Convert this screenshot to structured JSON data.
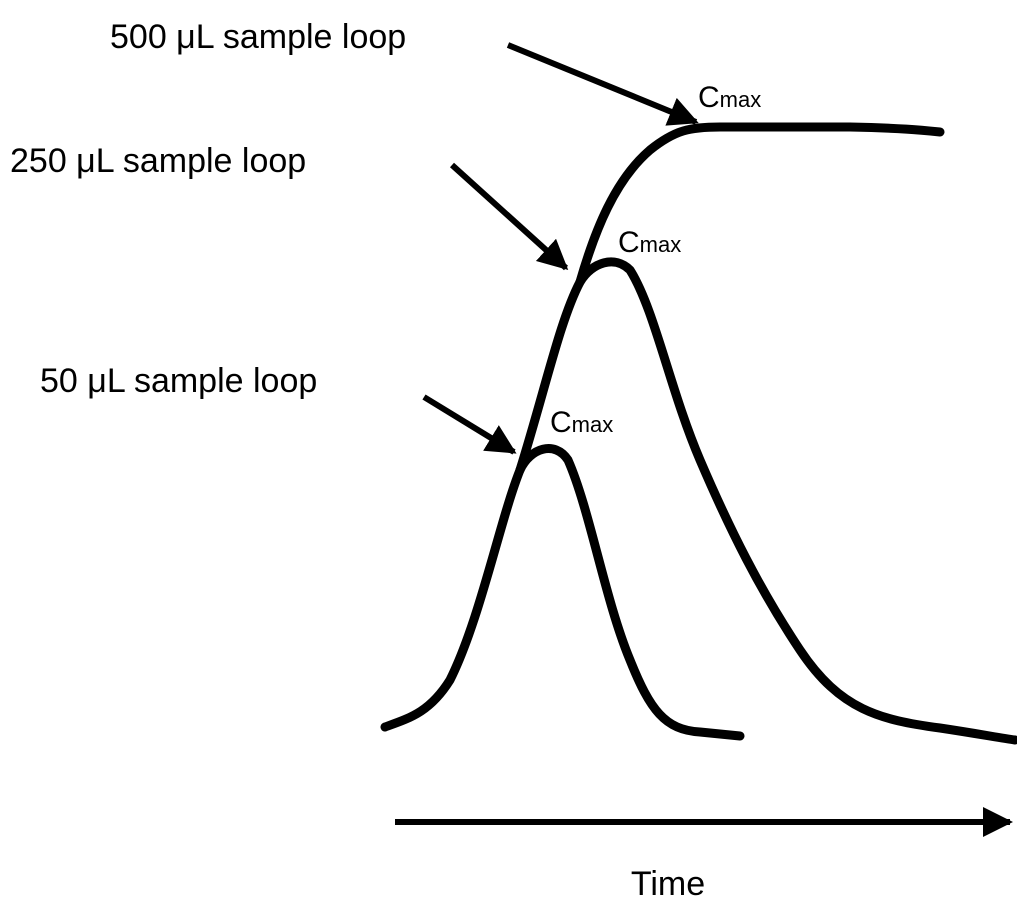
{
  "labels": [
    {
      "text": "500 μL sample loop",
      "peak": {
        "symbol": "C",
        "subscript": "max"
      }
    },
    {
      "text": "250 μL sample loop",
      "peak": {
        "symbol": "C",
        "subscript": "max"
      }
    },
    {
      "text": "50 μL sample loop",
      "peak": {
        "symbol": "C",
        "subscript": "max"
      }
    }
  ],
  "axis": {
    "label": "Time"
  }
}
